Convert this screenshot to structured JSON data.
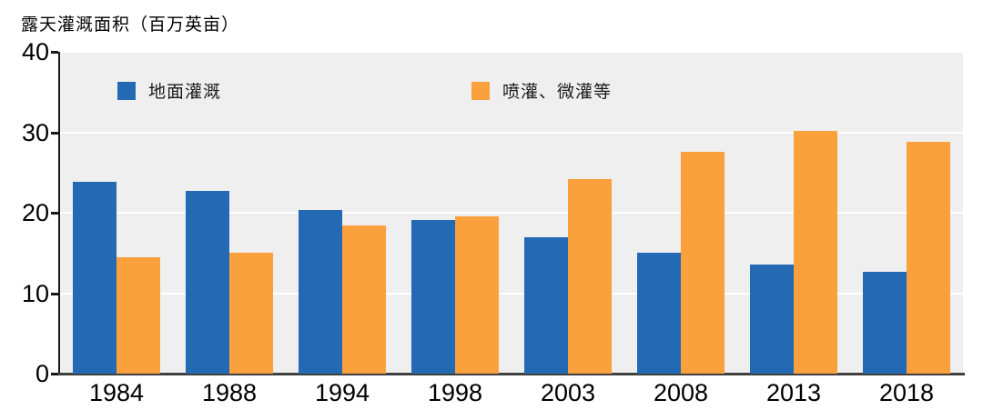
{
  "title": "露天灌溉面积（百万英亩）",
  "colors": {
    "background": "#ffffff",
    "plot_background": "#efefef",
    "gridline": "#ffffff",
    "x_axis_line": "#404040",
    "y_axis_line": "#1a1a1a",
    "tick": "#1a1a1a",
    "text": "#000000",
    "series_blue": "#2369b4",
    "series_orange": "#faa03c"
  },
  "legend": {
    "items": [
      {
        "label": "地面灌溉",
        "color": "#2369b4"
      },
      {
        "label": "喷灌、微灌等",
        "color": "#faa03c"
      }
    ]
  },
  "chart_data": {
    "type": "bar",
    "title": "露天灌溉面积（百万英亩）",
    "xlabel": "",
    "ylabel": "露天灌溉面积（百万英亩）",
    "categories": [
      "1984",
      "1988",
      "1994",
      "1998",
      "2003",
      "2008",
      "2013",
      "2018"
    ],
    "series": [
      {
        "name": "地面灌溉",
        "color": "#2369b4",
        "values": [
          23.9,
          22.7,
          20.3,
          19.1,
          16.9,
          15.0,
          13.6,
          12.7
        ]
      },
      {
        "name": "喷灌、微灌等",
        "color": "#faa03c",
        "values": [
          14.5,
          15.0,
          18.4,
          19.5,
          24.2,
          27.6,
          30.2,
          28.8
        ]
      }
    ],
    "ylim": [
      0,
      40
    ],
    "yticks": [
      0,
      10,
      20,
      30,
      40
    ],
    "ytick_labels": [
      "0",
      "10",
      "20",
      "30",
      "40"
    ],
    "grid": "horizontal white gridlines on gray plot background",
    "legend_position": "top inside plot area"
  }
}
